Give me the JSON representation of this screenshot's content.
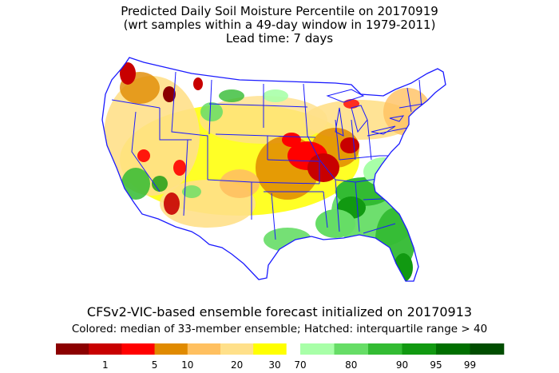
{
  "title": {
    "line1": "Predicted Daily Soil Moisture Percentile on 20170919",
    "line2": "(wrt samples within a 49-day window in 1979-2011)",
    "line3": "Lead time: 7 days"
  },
  "footer": {
    "main": "CFSv2-VIC-based ensemble forecast initialized on 20170913",
    "sub": "Colored: median of 33-member ensemble; Hatched: interquartile range > 40"
  },
  "legend": {
    "dry": [
      {
        "color": "#8b0000"
      },
      {
        "color": "#c80000"
      },
      {
        "color": "#ff0000"
      },
      {
        "color": "#e08a00"
      },
      {
        "color": "#ffc060"
      },
      {
        "color": "#ffe08a"
      },
      {
        "color": "#ffff00"
      }
    ],
    "wet": [
      {
        "color": "#a8ffa8"
      },
      {
        "color": "#66dd66"
      },
      {
        "color": "#33bb33"
      },
      {
        "color": "#119911"
      },
      {
        "color": "#006f00"
      },
      {
        "color": "#004d00"
      }
    ],
    "ticks": [
      "1",
      "5",
      "10",
      "20",
      "30",
      "70",
      "80",
      "90",
      "95",
      "99"
    ]
  },
  "colors": {
    "border": "#1a1aff",
    "land_neutral": "#ffffff"
  }
}
